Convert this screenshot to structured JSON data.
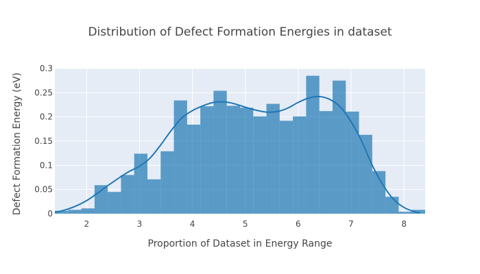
{
  "chart_data": {
    "type": "bar",
    "title": "Distribution of Defect Formation Energies in dataset",
    "xlabel": "Proportion of Dataset in Energy Range",
    "ylabel": "Defect Formation Energy (eV)",
    "xlim": [
      1.4,
      8.4
    ],
    "ylim": [
      0,
      0.3
    ],
    "x_ticks": [
      2,
      3,
      4,
      5,
      6,
      7,
      8
    ],
    "x_tick_labels": [
      "2",
      "3",
      "4",
      "5",
      "6",
      "7",
      "8"
    ],
    "y_ticks": [
      0,
      0.05,
      0.1,
      0.15,
      0.2,
      0.25,
      0.3
    ],
    "y_tick_labels": [
      "0",
      "0.05",
      "0.1",
      "0.15",
      "0.2",
      "0.25",
      "0.3"
    ],
    "grid": true,
    "legend": false,
    "histogram": {
      "bin_start": 1.4,
      "bin_width": 0.25,
      "values": [
        0.006,
        0.008,
        0.011,
        0.059,
        0.045,
        0.08,
        0.124,
        0.071,
        0.129,
        0.234,
        0.184,
        0.222,
        0.254,
        0.223,
        0.219,
        0.201,
        0.227,
        0.192,
        0.201,
        0.285,
        0.212,
        0.275,
        0.211,
        0.163,
        0.088,
        0.035,
        0.004,
        0.008
      ]
    },
    "density_curve": {
      "x": [
        1.4,
        1.6,
        1.8,
        2.0,
        2.2,
        2.4,
        2.6,
        2.8,
        3.0,
        3.2,
        3.4,
        3.6,
        3.8,
        4.0,
        4.2,
        4.4,
        4.6,
        4.8,
        5.0,
        5.2,
        5.4,
        5.6,
        5.8,
        6.0,
        6.2,
        6.4,
        6.6,
        6.8,
        7.0,
        7.2,
        7.4,
        7.6,
        7.8,
        8.0,
        8.2,
        8.3
      ],
      "y": [
        0.003,
        0.008,
        0.016,
        0.027,
        0.042,
        0.058,
        0.073,
        0.087,
        0.098,
        0.115,
        0.142,
        0.172,
        0.198,
        0.213,
        0.223,
        0.23,
        0.231,
        0.227,
        0.22,
        0.214,
        0.21,
        0.211,
        0.218,
        0.23,
        0.239,
        0.242,
        0.236,
        0.22,
        0.19,
        0.15,
        0.1,
        0.06,
        0.03,
        0.013,
        0.004,
        0.002
      ]
    },
    "colors": {
      "bar": "#1f77b4",
      "bar_opacity": 0.7,
      "line": "#1f77b4",
      "plot_bg": "#e5ecf6",
      "grid": "#ffffff",
      "text": "#444444"
    }
  }
}
